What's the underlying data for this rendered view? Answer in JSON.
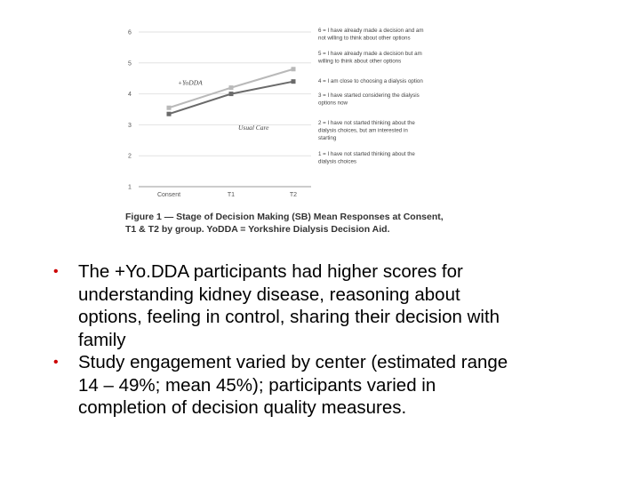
{
  "chart_data": {
    "type": "line",
    "title": "",
    "xlabel": "",
    "ylabel": "",
    "categories": [
      "Consent",
      "T1",
      "T2"
    ],
    "ylim": [
      1,
      6
    ],
    "yticks": [
      "1",
      "2",
      "3",
      "4",
      "5",
      "6"
    ],
    "grid": true,
    "series": [
      {
        "name": "+YoDDA",
        "values": [
          3.55,
          4.2,
          4.8
        ],
        "color": "#b9b9b9"
      },
      {
        "name": "Usual Care",
        "values": [
          3.35,
          4.0,
          4.4
        ],
        "color": "#6a6a6a"
      }
    ],
    "legend": [
      {
        "value": "6",
        "lines": [
          "6 = I have already made a decision and am",
          "not willing to think about other options"
        ]
      },
      {
        "value": "5",
        "lines": [
          "5 = I have already made a decision but am",
          "willing to think about other options"
        ]
      },
      {
        "value": "4",
        "lines": [
          "4 = I am close to choosing a dialysis option"
        ]
      },
      {
        "value": "3",
        "lines": [
          "3 = I have started considering the dialysis",
          "options now"
        ]
      },
      {
        "value": "2",
        "lines": [
          "2 = I have not started thinking about the",
          "dialysis choices, but am interested in",
          "starting"
        ]
      },
      {
        "value": "1",
        "lines": [
          "1 = I have not started thinking about the",
          "dialysis choices"
        ]
      }
    ]
  },
  "figure": {
    "caption_lines": [
      "Figure 1 — Stage of Decision Making (SB) Mean Responses at Consent,",
      "T1 & T2 by group. YoDDA = Yorkshire Dialysis Decision Aid."
    ]
  },
  "bullets": [
    {
      "lines": [
        "The +Yo.DDA participants had higher scores for",
        "understanding kidney disease, reasoning about",
        "options, feeling in control, sharing their decision with",
        "family"
      ]
    },
    {
      "lines": [
        "Study engagement varied by center (estimated range",
        "14 – 49%; mean 45%); participants varied in",
        "completion of decision quality measures."
      ]
    }
  ],
  "colors": {
    "bullet": "#cc0000",
    "grid": "#e2e2e2",
    "axis": "#9a9a9a"
  }
}
